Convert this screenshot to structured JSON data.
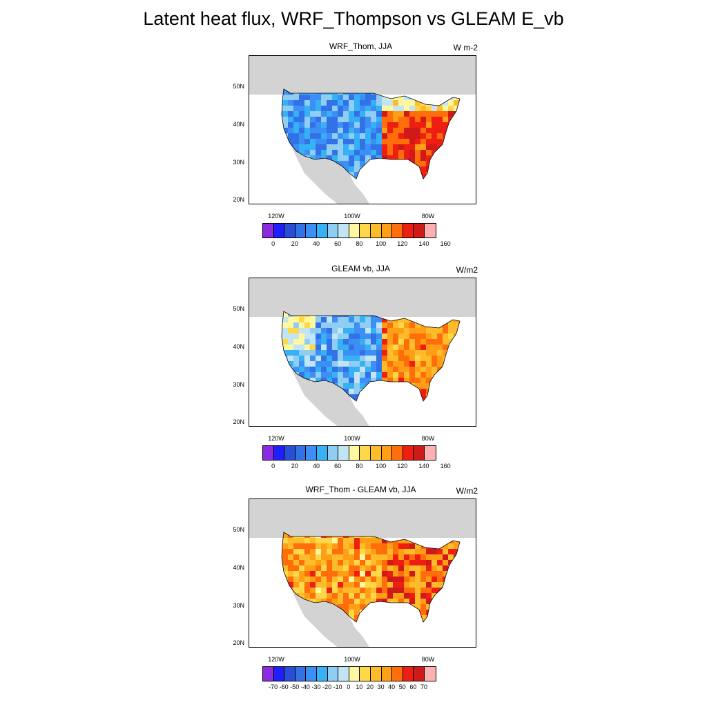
{
  "figure": {
    "title": "Latent heat flux, WRF_Thompson vs GLEAM E_vb"
  },
  "axes": {
    "lat_ticks": [
      "50N",
      "40N",
      "30N",
      "20N"
    ],
    "lon_ticks": [
      "120W",
      "100W",
      "80W"
    ]
  },
  "colors": {
    "land_mask": "#d3d3d3",
    "scale16": [
      "#8a2be2",
      "#1e1eff",
      "#2a4ed8",
      "#3372e6",
      "#3b8ff5",
      "#36b1f5",
      "#8fcdf2",
      "#c2e5f5",
      "#fff8a0",
      "#ffd84a",
      "#ffbc2a",
      "#ff9f16",
      "#ff6e0a",
      "#ee1f12",
      "#d01a1a",
      "#ffb0b0"
    ]
  },
  "panels": [
    {
      "title": "WRF_Thom, JJA",
      "units": "W m-2",
      "colorbar_labels": [
        "0",
        "20",
        "40",
        "60",
        "80",
        "100",
        "120",
        "140",
        "160"
      ]
    },
    {
      "title": "GLEAM vb, JJA",
      "units": "W/m2",
      "colorbar_labels": [
        "0",
        "20",
        "40",
        "60",
        "80",
        "100",
        "120",
        "140",
        "160"
      ]
    },
    {
      "title": "WRF_Thom - GLEAM vb, JJA",
      "units": "W/m2",
      "colorbar_labels": [
        "-70",
        "-60",
        "-50",
        "-40",
        "-30",
        "-20",
        "-10",
        "0",
        "10",
        "20",
        "30",
        "40",
        "50",
        "60",
        "70"
      ]
    }
  ]
}
